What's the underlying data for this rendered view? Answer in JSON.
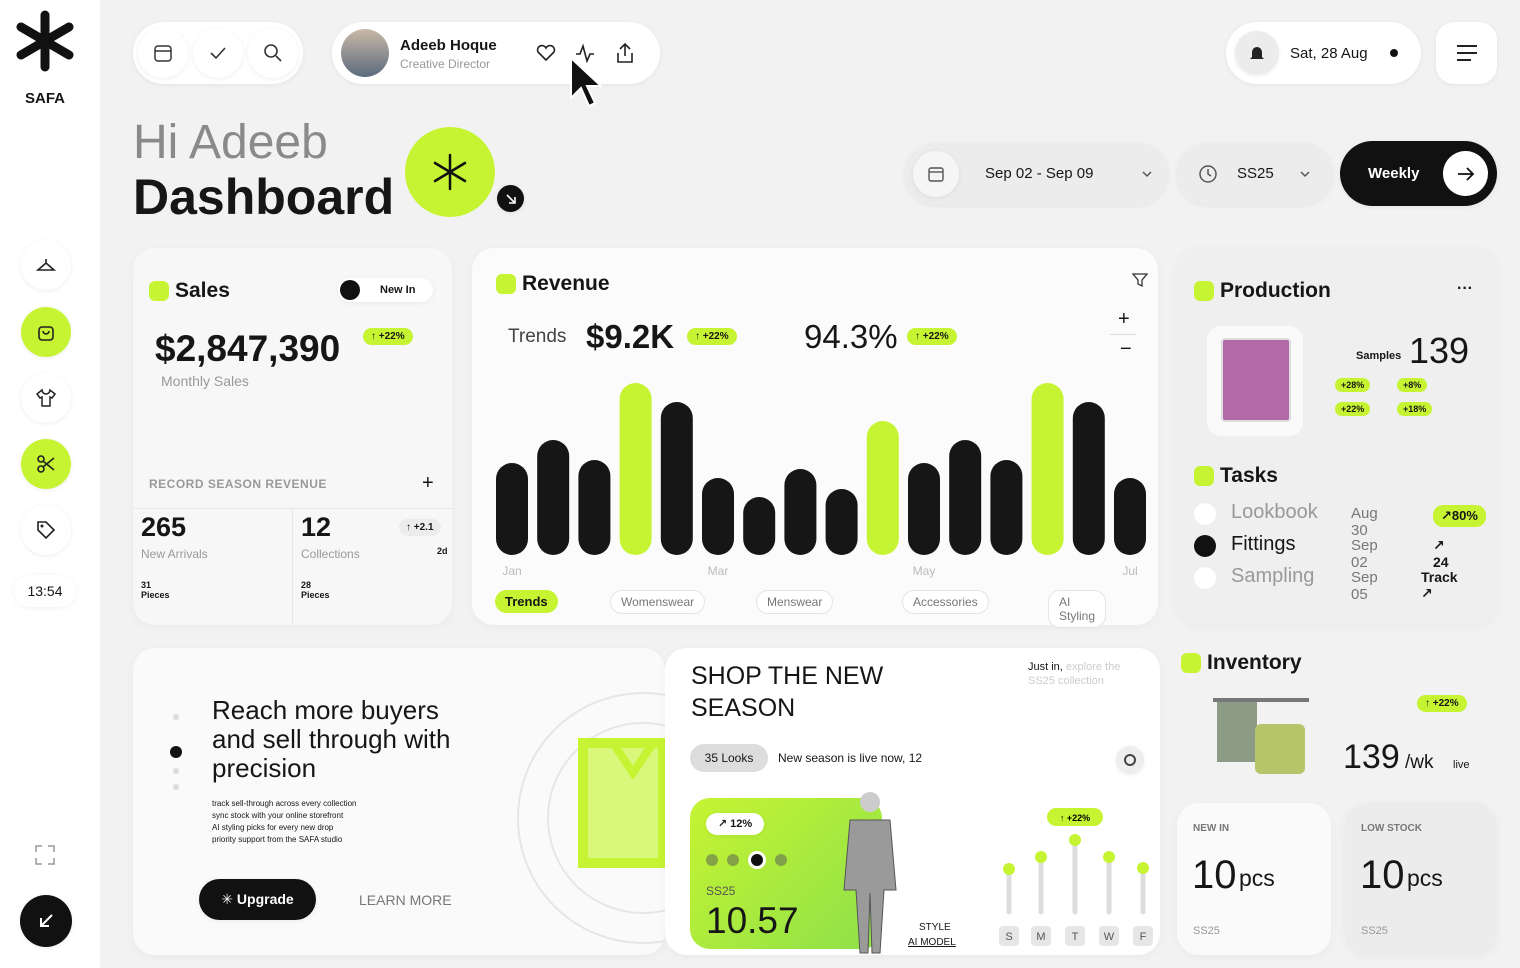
{
  "sidebar": {
    "brand": "SAFA",
    "time": "13:54"
  },
  "header": {
    "user": {
      "name": "Adeeb Hoque",
      "role": "Creative Director"
    },
    "date": "Sat, 28 Aug"
  },
  "greeting": {
    "hello": "Hi Adeeb",
    "title": "Dashboard"
  },
  "filters": {
    "range": "Sep 02 - Sep 09",
    "season": "SS25",
    "period": "Weekly"
  },
  "sales": {
    "title": "Sales",
    "badge": "New In",
    "amount": "$2,847,390",
    "change": "↑ +22%",
    "caption": "Monthly Sales",
    "section": "RECORD SEASON REVENUE",
    "stats": [
      {
        "value": "265",
        "label": "New Arrivals",
        "sub": "31 Pieces"
      },
      {
        "value": "12",
        "label": "Collections",
        "sub": "28 Pieces",
        "change": "↑ +2.1",
        "extra": "2d"
      }
    ]
  },
  "revenue": {
    "title": "Revenue",
    "label": "Trends",
    "value": "$9.2K",
    "change": "↑ +22%",
    "rate": "94.3%",
    "rate_change": "↑ +22%",
    "chart": {
      "type": "bar",
      "categories": [
        "Jan",
        null,
        null,
        null,
        null,
        "Mar",
        null,
        null,
        null,
        null,
        "May",
        null,
        null,
        null,
        null,
        "Jul"
      ],
      "values": [
        92,
        115,
        95,
        172,
        153,
        77,
        58,
        86,
        66,
        134,
        92,
        115,
        95,
        172,
        153,
        77
      ],
      "colors": [
        "#161616",
        "#161616",
        "#161616",
        "#c6f432",
        "#161616",
        "#161616",
        "#161616",
        "#161616",
        "#161616",
        "#c6f432",
        "#161616",
        "#161616",
        "#161616",
        "#c6f432",
        "#161616",
        "#161616"
      ]
    },
    "tabs": [
      "Trends",
      "Womenswear",
      "Menswear",
      "Accessories",
      "AI Styling"
    ]
  },
  "production": {
    "title": "Production",
    "samples_label": "Samples",
    "samples": "139",
    "tags": [
      "+28%",
      "+8%",
      "+22%",
      "+18%"
    ]
  },
  "tasks": {
    "title": "Tasks",
    "rows": [
      [
        "Lookbook",
        "Aug 30",
        "↗80%"
      ],
      [
        "Fittings",
        "Sep 02",
        "↗ 24"
      ],
      [
        "Sampling",
        "Sep 05",
        "Track ↗"
      ]
    ]
  },
  "promo": {
    "headline": "Reach more buyers and sell through with precision",
    "bullets": [
      "track sell-through across every collection",
      "sync stock with your online storefront",
      "AI styling picks for every new drop",
      "priority support from the SAFA studio"
    ],
    "primary": "Upgrade",
    "secondary": "LEARN MORE"
  },
  "shop": {
    "title": "SHOP THE NEW SEASON",
    "note": "Just in,",
    "note_faded": "explore the SS25 collection",
    "chip": "35 Looks",
    "message": "New season is live now, 12",
    "card": {
      "change": "↗ 12%",
      "label": "SS25",
      "value": "10.57"
    },
    "style": "STYLE",
    "model": "AI MODEL",
    "chart": {
      "type": "lollipop",
      "categories": [
        "S",
        "M",
        "T",
        "W",
        "F"
      ],
      "values": [
        43,
        55,
        72,
        55,
        44
      ],
      "badge": "↑ +22%",
      "color": "#c6f432"
    }
  },
  "inventory": {
    "title": "Inventory",
    "change": "↑ +22%",
    "value": "139",
    "unit": "/wk",
    "live": "live",
    "tiles": [
      {
        "label": "NEW IN",
        "value": "10",
        "unit": "pcs",
        "season": "SS25"
      },
      {
        "label": "LOW STOCK",
        "value": "10",
        "unit": "pcs",
        "season": "SS25"
      }
    ]
  }
}
